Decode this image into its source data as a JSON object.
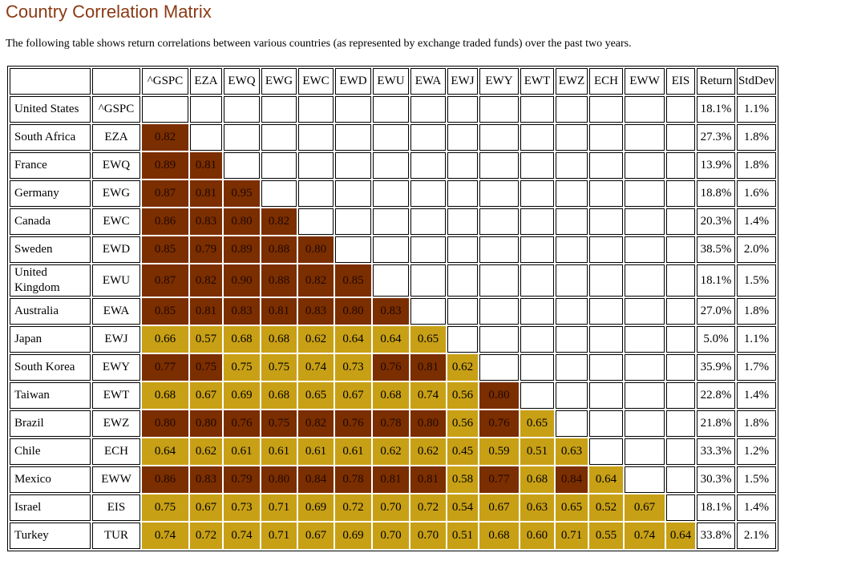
{
  "title": "Country Correlation Matrix",
  "subtitle": "The following table shows return correlations between various countries (as represented by exchange traded funds) over the past two years.",
  "chart_data": {
    "type": "table",
    "columns": [
      "^GSPC",
      "EZA",
      "EWQ",
      "EWG",
      "EWC",
      "EWD",
      "EWU",
      "EWA",
      "EWJ",
      "EWY",
      "EWT",
      "EWZ",
      "ECH",
      "EWW",
      "EIS"
    ],
    "extra_columns": [
      "Return",
      "StdDev"
    ],
    "colors": {
      "high": "#7B2E00",
      "medium": "#C8A015",
      "empty": "#FFFFFF"
    },
    "rows": [
      {
        "country": "United States",
        "ticker": "^GSPC",
        "values": [],
        "return": "18.1%",
        "stddev": "1.1%"
      },
      {
        "country": "South Africa",
        "ticker": "EZA",
        "values": [
          "0.82"
        ],
        "return": "27.3%",
        "stddev": "1.8%"
      },
      {
        "country": "France",
        "ticker": "EWQ",
        "values": [
          "0.89",
          "0.81"
        ],
        "return": "13.9%",
        "stddev": "1.8%"
      },
      {
        "country": "Germany",
        "ticker": "EWG",
        "values": [
          "0.87",
          "0.81",
          "0.95"
        ],
        "return": "18.8%",
        "stddev": "1.6%"
      },
      {
        "country": "Canada",
        "ticker": "EWC",
        "values": [
          "0.86",
          "0.83",
          "0.80",
          "0.82"
        ],
        "return": "20.3%",
        "stddev": "1.4%"
      },
      {
        "country": "Sweden",
        "ticker": "EWD",
        "values": [
          "0.85",
          "0.79",
          "0.89",
          "0.88",
          "0.80"
        ],
        "return": "38.5%",
        "stddev": "2.0%"
      },
      {
        "country": "United Kingdom",
        "ticker": "EWU",
        "values": [
          "0.87",
          "0.82",
          "0.90",
          "0.88",
          "0.82",
          "0.85"
        ],
        "return": "18.1%",
        "stddev": "1.5%"
      },
      {
        "country": "Australia",
        "ticker": "EWA",
        "values": [
          "0.85",
          "0.81",
          "0.83",
          "0.81",
          "0.83",
          "0.80",
          "0.83"
        ],
        "return": "27.0%",
        "stddev": "1.8%"
      },
      {
        "country": "Japan",
        "ticker": "EWJ",
        "values": [
          "0.66",
          "0.57",
          "0.68",
          "0.68",
          "0.62",
          "0.64",
          "0.64",
          "0.65"
        ],
        "return": "5.0%",
        "stddev": "1.1%"
      },
      {
        "country": "South Korea",
        "ticker": "EWY",
        "values": [
          "0.77",
          "0.75",
          "0.75",
          "0.75",
          "0.74",
          "0.73",
          "0.76",
          "0.81",
          "0.62"
        ],
        "return": "35.9%",
        "stddev": "1.7%"
      },
      {
        "country": "Taiwan",
        "ticker": "EWT",
        "values": [
          "0.68",
          "0.67",
          "0.69",
          "0.68",
          "0.65",
          "0.67",
          "0.68",
          "0.74",
          "0.56",
          "0.80"
        ],
        "return": "22.8%",
        "stddev": "1.4%"
      },
      {
        "country": "Brazil",
        "ticker": "EWZ",
        "values": [
          "0.80",
          "0.80",
          "0.76",
          "0.75",
          "0.82",
          "0.76",
          "0.78",
          "0.80",
          "0.56",
          "0.76",
          "0.65"
        ],
        "return": "21.8%",
        "stddev": "1.8%"
      },
      {
        "country": "Chile",
        "ticker": "ECH",
        "values": [
          "0.64",
          "0.62",
          "0.61",
          "0.61",
          "0.61",
          "0.61",
          "0.62",
          "0.62",
          "0.45",
          "0.59",
          "0.51",
          "0.63"
        ],
        "return": "33.3%",
        "stddev": "1.2%"
      },
      {
        "country": "Mexico",
        "ticker": "EWW",
        "values": [
          "0.86",
          "0.83",
          "0.79",
          "0.80",
          "0.84",
          "0.78",
          "0.81",
          "0.81",
          "0.58",
          "0.77",
          "0.68",
          "0.84",
          "0.64"
        ],
        "return": "30.3%",
        "stddev": "1.5%"
      },
      {
        "country": "Israel",
        "ticker": "EIS",
        "values": [
          "0.75",
          "0.67",
          "0.73",
          "0.71",
          "0.69",
          "0.72",
          "0.70",
          "0.72",
          "0.54",
          "0.67",
          "0.63",
          "0.65",
          "0.52",
          "0.67"
        ],
        "return": "18.1%",
        "stddev": "1.4%"
      },
      {
        "country": "Turkey",
        "ticker": "TUR",
        "values": [
          "0.74",
          "0.72",
          "0.74",
          "0.71",
          "0.67",
          "0.69",
          "0.70",
          "0.70",
          "0.51",
          "0.68",
          "0.60",
          "0.71",
          "0.55",
          "0.74",
          "0.64"
        ],
        "return": "33.8%",
        "stddev": "2.1%"
      }
    ],
    "high_cells": {
      "1": [
        0
      ],
      "2": [
        0,
        1
      ],
      "3": [
        0,
        1,
        2
      ],
      "4": [
        0,
        1,
        2,
        3
      ],
      "5": [
        0,
        1,
        2,
        3,
        4
      ],
      "6": [
        0,
        1,
        2,
        3,
        4,
        5
      ],
      "7": [
        0,
        1,
        2,
        3,
        4,
        5,
        6
      ],
      "9": [
        0,
        1,
        6,
        7
      ],
      "10": [
        9
      ],
      "11": [
        0,
        1,
        2,
        3,
        4,
        5,
        6,
        7,
        9
      ],
      "13": [
        0,
        1,
        2,
        3,
        4,
        5,
        6,
        7,
        9,
        11
      ]
    }
  }
}
